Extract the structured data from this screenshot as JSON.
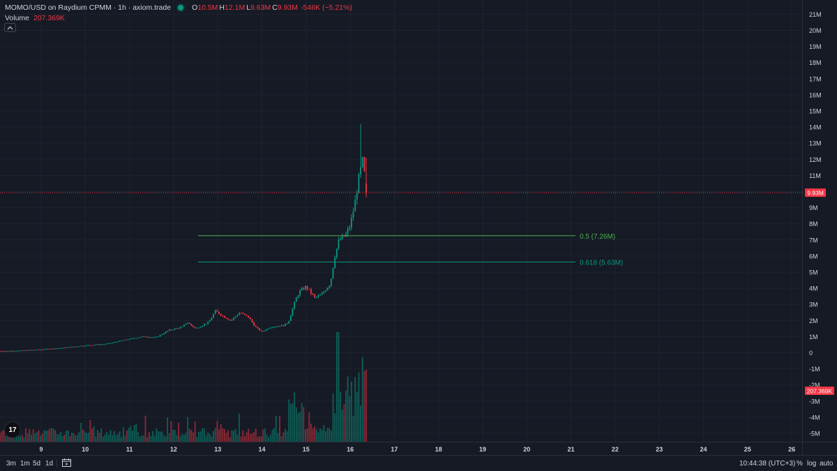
{
  "legend": {
    "title": "MOMO/USD on Raydium CPMM · 1h · axiom.trade",
    "o_label": "O",
    "o_value": "10.5M",
    "h_label": "H",
    "h_value": "12.1M",
    "l_label": "L",
    "l_value": "9.63M",
    "c_label": "C",
    "c_value": "9.93M",
    "change": "-546K (−5.21%)",
    "volume_label": "Volume",
    "volume_value": "207.369K",
    "collapse_icon": "chevron-up-icon"
  },
  "colors": {
    "background": "#161a25",
    "up": "#089981",
    "down": "#f23645",
    "fib_05": "#4caf50",
    "fib_0618": "#089981",
    "grid": "#1f2330"
  },
  "chart_data": {
    "type": "candlestick",
    "xlabel": "",
    "ylabel": "",
    "x_ticks": [
      "9",
      "10",
      "11",
      "12",
      "13",
      "14",
      "15",
      "16",
      "17",
      "18",
      "19",
      "20",
      "21",
      "22",
      "23",
      "24",
      "25",
      "26"
    ],
    "y_ticks": [
      "21M",
      "20M",
      "19M",
      "18M",
      "17M",
      "16M",
      "15M",
      "14M",
      "13M",
      "12M",
      "11M",
      "10M",
      "9M",
      "8M",
      "7M",
      "6M",
      "5M",
      "4M",
      "3M",
      "2M",
      "1M",
      "0",
      "-1M",
      "-2M",
      "-3M",
      "-4M",
      "-5M"
    ],
    "ylim": [
      -5.5,
      21.3
    ],
    "last_price_label": "9.93M",
    "last_price": 9.93,
    "last_volume_label": "207.369K",
    "last_volume": 207.369,
    "fib_levels": [
      {
        "label": "0.5 (7.26M)",
        "value": 7.26
      },
      {
        "label": "0.618 (5.63M)",
        "value": 5.63
      }
    ],
    "price_keypoints_by_day": [
      [
        8.0,
        0.1
      ],
      [
        8.5,
        0.12
      ],
      [
        9.0,
        0.2
      ],
      [
        9.5,
        0.3
      ],
      [
        10.0,
        0.45
      ],
      [
        10.5,
        0.55
      ],
      [
        10.9,
        0.8
      ],
      [
        11.3,
        1.0
      ],
      [
        11.6,
        0.95
      ],
      [
        11.9,
        1.4
      ],
      [
        12.2,
        1.6
      ],
      [
        12.3,
        1.9
      ],
      [
        12.5,
        1.5
      ],
      [
        12.8,
        1.9
      ],
      [
        12.95,
        2.6
      ],
      [
        13.1,
        2.3
      ],
      [
        13.3,
        2.0
      ],
      [
        13.5,
        2.5
      ],
      [
        13.7,
        2.2
      ],
      [
        13.85,
        1.6
      ],
      [
        14.0,
        1.3
      ],
      [
        14.2,
        1.6
      ],
      [
        14.5,
        1.7
      ],
      [
        14.6,
        1.9
      ],
      [
        14.75,
        3.2
      ],
      [
        14.85,
        3.8
      ],
      [
        15.0,
        4.1
      ],
      [
        15.2,
        3.4
      ],
      [
        15.35,
        3.6
      ],
      [
        15.55,
        4.3
      ],
      [
        15.65,
        6.0
      ],
      [
        15.75,
        7.0
      ],
      [
        15.9,
        7.3
      ],
      [
        16.0,
        7.9
      ],
      [
        16.1,
        9.2
      ],
      [
        16.2,
        10.9
      ],
      [
        16.28,
        11.9
      ],
      [
        16.35,
        10.5
      ],
      [
        16.4,
        9.93
      ]
    ],
    "volume_series_note_units": "relative, last bar = 207.369K"
  },
  "bottom_bar": {
    "timeframes": [
      "3m",
      "1m",
      "5d",
      "1d"
    ],
    "clock": "10:44:38 (UTC+3)",
    "percent_label": "%",
    "log_label": "log",
    "auto_label": "auto",
    "goto_icon": "calendar-goto-icon",
    "settings_icon": "gear-icon"
  },
  "logo_text": "17"
}
